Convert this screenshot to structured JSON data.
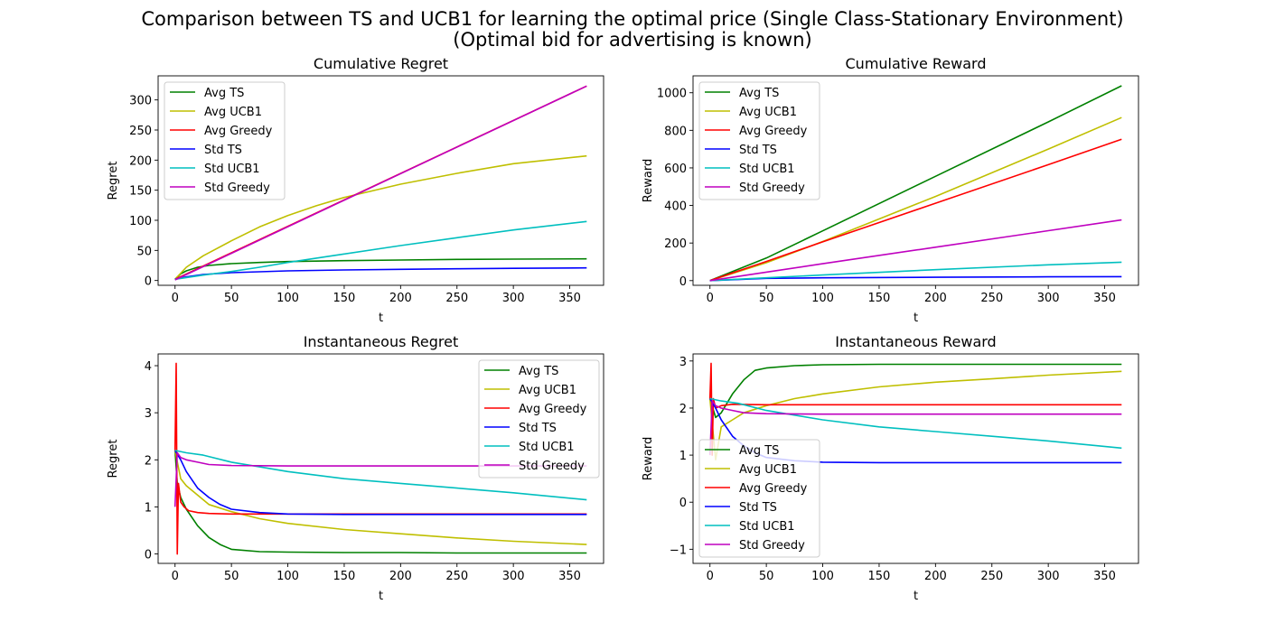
{
  "figure": {
    "title_line1": "Comparison between TS and UCB1 for learning the optimal price (Single Class-Stationary Environment)",
    "title_line2": "(Optimal bid for advertising is known)"
  },
  "chart_data": [
    {
      "type": "line",
      "title": "Cumulative Regret",
      "xlabel": "t",
      "ylabel": "Regret",
      "xlim": [
        -15,
        380
      ],
      "ylim": [
        -8,
        340
      ],
      "xticks": [
        0,
        50,
        100,
        150,
        200,
        250,
        300,
        350
      ],
      "yticks": [
        0,
        50,
        100,
        150,
        200,
        250,
        300
      ],
      "grid": false,
      "legend_position": "upper-left",
      "series": [
        {
          "name": "Avg TS",
          "color": "#008000",
          "x": [
            0,
            5,
            10,
            20,
            30,
            50,
            75,
            100,
            150,
            200,
            250,
            300,
            365
          ],
          "y": [
            2,
            11,
            16,
            22,
            25,
            28,
            30,
            31.5,
            33,
            34,
            35,
            35.5,
            36
          ]
        },
        {
          "name": "Avg UCB1",
          "color": "#bfbf00",
          "x": [
            0,
            10,
            25,
            50,
            75,
            100,
            125,
            150,
            200,
            250,
            300,
            365
          ],
          "y": [
            2,
            22,
            41,
            66,
            89,
            108,
            124,
            138,
            160,
            178,
            194,
            207
          ]
        },
        {
          "name": "Avg Greedy",
          "color": "#ff0000",
          "x": [
            0,
            365
          ],
          "y": [
            2,
            323
          ]
        },
        {
          "name": "Std TS",
          "color": "#0000ff",
          "x": [
            0,
            10,
            25,
            50,
            100,
            150,
            200,
            250,
            300,
            365
          ],
          "y": [
            2,
            6,
            10,
            13,
            16,
            17.5,
            18.5,
            19.5,
            20.2,
            21
          ]
        },
        {
          "name": "Std UCB1",
          "color": "#00bfbf",
          "x": [
            0,
            25,
            50,
            75,
            100,
            150,
            200,
            250,
            300,
            365
          ],
          "y": [
            2,
            9,
            15,
            22,
            30,
            44,
            58,
            71,
            84,
            98
          ]
        },
        {
          "name": "Std Greedy",
          "color": "#bf00bf",
          "x": [
            0,
            365
          ],
          "y": [
            1,
            323
          ]
        }
      ]
    },
    {
      "type": "line",
      "title": "Cumulative Reward",
      "xlabel": "t",
      "ylabel": "Reward",
      "xlim": [
        -15,
        380
      ],
      "ylim": [
        -25,
        1090
      ],
      "xticks": [
        0,
        50,
        100,
        150,
        200,
        250,
        300,
        350
      ],
      "yticks": [
        0,
        200,
        400,
        600,
        800,
        1000
      ],
      "grid": false,
      "legend_position": "upper-left",
      "series": [
        {
          "name": "Avg TS",
          "color": "#008000",
          "x": [
            0,
            50,
            100,
            200,
            300,
            365
          ],
          "y": [
            0,
            120,
            265,
            555,
            845,
            1037
          ]
        },
        {
          "name": "Avg UCB1",
          "color": "#bfbf00",
          "x": [
            0,
            50,
            100,
            200,
            300,
            365
          ],
          "y": [
            0,
            95,
            208,
            448,
            700,
            868
          ]
        },
        {
          "name": "Avg Greedy",
          "color": "#ff0000",
          "x": [
            0,
            50,
            100,
            200,
            300,
            365
          ],
          "y": [
            0,
            102,
            206,
            412,
            617,
            752
          ]
        },
        {
          "name": "Std TS",
          "color": "#0000ff",
          "x": [
            0,
            50,
            100,
            200,
            300,
            365
          ],
          "y": [
            0,
            12,
            15,
            18,
            20,
            21
          ]
        },
        {
          "name": "Std UCB1",
          "color": "#00bfbf",
          "x": [
            0,
            50,
            100,
            200,
            300,
            365
          ],
          "y": [
            0,
            15,
            30,
            58,
            84,
            98
          ]
        },
        {
          "name": "Std Greedy",
          "color": "#bf00bf",
          "x": [
            0,
            50,
            100,
            200,
            300,
            365
          ],
          "y": [
            0,
            45,
            90,
            178,
            266,
            323
          ]
        }
      ]
    },
    {
      "type": "line",
      "title": "Instantaneous Regret",
      "xlabel": "t",
      "ylabel": "Regret",
      "xlim": [
        -15,
        380
      ],
      "ylim": [
        -0.2,
        4.25
      ],
      "xticks": [
        0,
        50,
        100,
        150,
        200,
        250,
        300,
        350
      ],
      "yticks": [
        0,
        1,
        2,
        3,
        4
      ],
      "grid": false,
      "legend_position": "upper-right",
      "series": [
        {
          "name": "Avg TS",
          "color": "#008000",
          "x": [
            0,
            2,
            5,
            10,
            20,
            30,
            40,
            50,
            75,
            100,
            150,
            200,
            250,
            300,
            365
          ],
          "y": [
            2.2,
            1.5,
            1.2,
            0.95,
            0.6,
            0.35,
            0.2,
            0.1,
            0.05,
            0.04,
            0.03,
            0.03,
            0.02,
            0.02,
            0.02
          ]
        },
        {
          "name": "Avg UCB1",
          "color": "#bfbf00",
          "x": [
            0,
            5,
            10,
            20,
            30,
            50,
            75,
            100,
            150,
            200,
            250,
            300,
            365
          ],
          "y": [
            2.2,
            1.6,
            1.45,
            1.25,
            1.05,
            0.9,
            0.75,
            0.65,
            0.52,
            0.43,
            0.34,
            0.27,
            0.2
          ]
        },
        {
          "name": "Avg Greedy",
          "color": "#ff0000",
          "x": [
            0,
            1,
            2,
            3,
            5,
            8,
            12,
            20,
            30,
            50,
            100,
            200,
            300,
            365
          ],
          "y": [
            2.2,
            4.05,
            0.0,
            1.5,
            1.1,
            1.0,
            0.92,
            0.88,
            0.86,
            0.85,
            0.85,
            0.85,
            0.85,
            0.85
          ]
        },
        {
          "name": "Std TS",
          "color": "#0000ff",
          "x": [
            0,
            5,
            10,
            20,
            30,
            40,
            50,
            75,
            100,
            150,
            200,
            250,
            300,
            365
          ],
          "y": [
            2.2,
            2.0,
            1.75,
            1.4,
            1.2,
            1.05,
            0.95,
            0.88,
            0.85,
            0.84,
            0.84,
            0.84,
            0.84,
            0.84
          ]
        },
        {
          "name": "Std UCB1",
          "color": "#00bfbf",
          "x": [
            0,
            10,
            25,
            50,
            75,
            100,
            150,
            200,
            250,
            300,
            365
          ],
          "y": [
            2.2,
            2.15,
            2.1,
            1.95,
            1.85,
            1.75,
            1.6,
            1.5,
            1.4,
            1.3,
            1.15
          ]
        },
        {
          "name": "Std Greedy",
          "color": "#bf00bf",
          "x": [
            0,
            2,
            5,
            10,
            20,
            30,
            50,
            100,
            200,
            300,
            365
          ],
          "y": [
            1.0,
            2.15,
            2.05,
            2.0,
            1.95,
            1.9,
            1.88,
            1.87,
            1.87,
            1.87,
            1.87
          ]
        }
      ]
    },
    {
      "type": "line",
      "title": "Instantaneous Reward",
      "xlabel": "t",
      "ylabel": "Reward",
      "xlim": [
        -15,
        380
      ],
      "ylim": [
        -1.3,
        3.15
      ],
      "xticks": [
        0,
        50,
        100,
        150,
        200,
        250,
        300,
        350
      ],
      "yticks": [
        -1,
        0,
        1,
        2,
        3
      ],
      "grid": false,
      "legend_position": "lower-left",
      "series": [
        {
          "name": "Avg TS",
          "color": "#008000",
          "x": [
            0,
            5,
            10,
            20,
            30,
            40,
            50,
            75,
            100,
            150,
            200,
            250,
            300,
            365
          ],
          "y": [
            2.2,
            1.8,
            1.9,
            2.3,
            2.6,
            2.8,
            2.85,
            2.9,
            2.92,
            2.93,
            2.93,
            2.93,
            2.93,
            2.93
          ]
        },
        {
          "name": "Avg UCB1",
          "color": "#bfbf00",
          "x": [
            0,
            5,
            10,
            20,
            30,
            50,
            75,
            100,
            150,
            200,
            250,
            300,
            365
          ],
          "y": [
            2.2,
            0.9,
            1.6,
            1.75,
            1.9,
            2.05,
            2.2,
            2.3,
            2.45,
            2.55,
            2.62,
            2.7,
            2.78
          ]
        },
        {
          "name": "Avg Greedy",
          "color": "#ff0000",
          "x": [
            0,
            1,
            2,
            3,
            5,
            10,
            20,
            50,
            100,
            200,
            300,
            365
          ],
          "y": [
            2.2,
            2.95,
            1.0,
            2.2,
            2.0,
            2.05,
            2.08,
            2.07,
            2.07,
            2.07,
            2.07,
            2.07
          ]
        },
        {
          "name": "Std TS",
          "color": "#0000ff",
          "x": [
            0,
            5,
            10,
            20,
            30,
            40,
            50,
            75,
            100,
            150,
            200,
            250,
            300,
            365
          ],
          "y": [
            2.2,
            2.0,
            1.75,
            1.4,
            1.2,
            1.05,
            0.95,
            0.88,
            0.85,
            0.84,
            0.84,
            0.84,
            0.84,
            0.84
          ]
        },
        {
          "name": "Std UCB1",
          "color": "#00bfbf",
          "x": [
            0,
            10,
            25,
            50,
            75,
            100,
            150,
            200,
            250,
            300,
            365
          ],
          "y": [
            2.2,
            2.15,
            2.1,
            1.95,
            1.85,
            1.75,
            1.6,
            1.5,
            1.4,
            1.3,
            1.15
          ]
        },
        {
          "name": "Std Greedy",
          "color": "#bf00bf",
          "x": [
            0,
            2,
            5,
            10,
            20,
            30,
            50,
            100,
            200,
            300,
            365
          ],
          "y": [
            1.0,
            2.15,
            2.05,
            2.0,
            1.95,
            1.9,
            1.88,
            1.87,
            1.87,
            1.87,
            1.87
          ]
        }
      ]
    }
  ]
}
